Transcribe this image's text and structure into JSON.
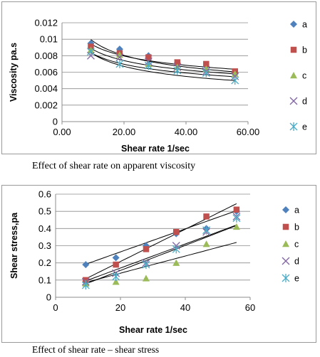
{
  "captions": {
    "viscosity": "Effect of shear rate on apparent viscosity",
    "stress": "Effect of shear rate – shear stress"
  },
  "legend_markers": {
    "a": "diamond",
    "b": "square",
    "c": "triangle",
    "d": "x",
    "e": "asterisk"
  },
  "chart_data": [
    {
      "type": "scatter",
      "title": "",
      "xlabel": "Shear rate 1/sec",
      "ylabel": "Viscosity pa.s",
      "xlim": [
        0,
        60
      ],
      "ylim": [
        0,
        0.012
      ],
      "xticks": [
        "0.00",
        "20.00",
        "40.00",
        "60.00"
      ],
      "xtick_values": [
        0,
        20,
        40,
        60
      ],
      "yticks": [
        "0",
        "0.002",
        "0.004",
        "0.006",
        "0.008",
        "0.01",
        "0.012"
      ],
      "ytick_values": [
        0,
        0.002,
        0.004,
        0.006,
        0.008,
        0.01,
        0.012
      ],
      "grid": "horizontal",
      "legend_position": "right",
      "x": [
        9.3,
        18.6,
        27.9,
        37.2,
        46.5,
        55.8
      ],
      "series": [
        {
          "name": "a",
          "color": "#4f81bd",
          "values": [
            0.0095,
            0.0088,
            0.008,
            0.0071,
            0.0067,
            0.0058
          ]
        },
        {
          "name": "b",
          "color": "#c0504d",
          "values": [
            0.0091,
            0.0083,
            0.0078,
            0.0072,
            0.007,
            0.0061
          ]
        },
        {
          "name": "c",
          "color": "#9bbb59",
          "values": [
            0.0087,
            0.0081,
            0.007,
            0.0066,
            0.0064,
            0.0058
          ]
        },
        {
          "name": "d",
          "color": "#8064a2",
          "values": [
            0.008,
            0.0078,
            0.0073,
            0.0066,
            0.0061,
            0.0055
          ]
        },
        {
          "name": "e",
          "color": "#4bacc6",
          "values": [
            0.0085,
            0.007,
            0.0068,
            0.0062,
            0.0059,
            0.005
          ]
        }
      ],
      "trendlines": [
        {
          "type": "power",
          "a": 0.0186,
          "b": -0.28
        },
        {
          "type": "power",
          "a": 0.0154,
          "b": -0.22
        },
        {
          "type": "power",
          "a": 0.0152,
          "b": -0.24
        },
        {
          "type": "power",
          "a": 0.0143,
          "b": -0.24
        },
        {
          "type": "power",
          "a": 0.016,
          "b": -0.29
        }
      ]
    },
    {
      "type": "scatter",
      "title": "",
      "xlabel": "Shear rate 1/sec",
      "ylabel": "Shear stress,pa",
      "xlim": [
        0,
        60
      ],
      "ylim": [
        0,
        0.6
      ],
      "xticks": [
        "0",
        "20",
        "40",
        "60"
      ],
      "xtick_values": [
        0,
        20,
        40,
        60
      ],
      "yticks": [
        "0",
        "0.1",
        "0.2",
        "0.3",
        "0.4",
        "0.5",
        "0.6"
      ],
      "ytick_values": [
        0,
        0.1,
        0.2,
        0.3,
        0.4,
        0.5,
        0.6
      ],
      "grid": "horizontal",
      "legend_position": "right",
      "x": [
        9.3,
        18.6,
        27.9,
        37.2,
        46.5,
        55.8
      ],
      "series": [
        {
          "name": "a",
          "color": "#4f81bd",
          "values": [
            0.19,
            0.23,
            0.3,
            0.37,
            0.4,
            0.5
          ]
        },
        {
          "name": "b",
          "color": "#c0504d",
          "values": [
            0.1,
            0.19,
            0.28,
            0.38,
            0.47,
            0.51
          ]
        },
        {
          "name": "c",
          "color": "#9bbb59",
          "values": [
            0.08,
            0.09,
            0.11,
            0.2,
            0.31,
            0.41
          ]
        },
        {
          "name": "d",
          "color": "#8064a2",
          "values": [
            0.09,
            0.14,
            0.2,
            0.3,
            0.38,
            0.47
          ]
        },
        {
          "name": "e",
          "color": "#4bacc6",
          "values": [
            0.07,
            0.12,
            0.19,
            0.28,
            0.39,
            0.46
          ]
        }
      ],
      "trendlines": [
        {
          "type": "linear",
          "slope": 0.0067,
          "intercept": 0.13
        },
        {
          "type": "linear",
          "slope": 0.0094,
          "intercept": 0.02
        },
        {
          "type": "linear",
          "slope": 0.005,
          "intercept": 0.04
        },
        {
          "type": "linear",
          "slope": 0.007,
          "intercept": 0.03
        },
        {
          "type": "linear",
          "slope": 0.0073,
          "intercept": 0.01
        }
      ]
    }
  ]
}
